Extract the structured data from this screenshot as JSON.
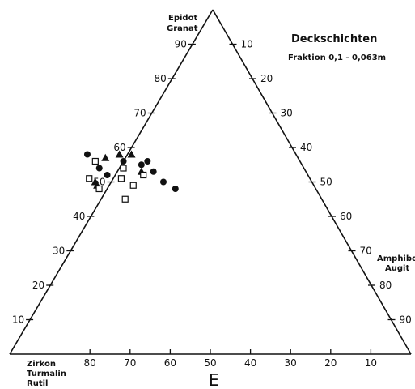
{
  "chart_data": {
    "type": "scatter",
    "plot_kind": "ternary",
    "title": "Deckschichten",
    "subtitle": "Fraktion 0,1 - 0,063m",
    "bottom_label": "E",
    "apices": {
      "top": [
        "Epidot",
        "Granat"
      ],
      "right": [
        "Amphibol",
        "Augit"
      ],
      "bottom_left": [
        "Zirkon",
        "Turmalin",
        "Rutil"
      ]
    },
    "axes": {
      "left_edge_ticks": [
        10,
        20,
        30,
        40,
        50,
        60,
        70,
        80,
        90
      ],
      "right_edge_ticks": [
        10,
        20,
        30,
        40,
        50,
        60,
        70,
        80,
        90
      ],
      "bottom_edge_ticks": [
        80,
        70,
        60,
        50,
        40,
        30,
        20,
        10
      ]
    },
    "series": [
      {
        "marker": "filled-circle",
        "points": [
          {
            "epidot_granat": 58,
            "bottom": 52
          },
          {
            "epidot_granat": 56,
            "bottom": 44
          },
          {
            "epidot_granat": 56,
            "bottom": 38
          },
          {
            "epidot_granat": 54,
            "bottom": 51
          },
          {
            "epidot_granat": 55,
            "bottom": 40
          },
          {
            "epidot_granat": 52,
            "bottom": 50
          },
          {
            "epidot_granat": 53,
            "bottom": 38
          },
          {
            "epidot_granat": 50,
            "bottom": 37
          },
          {
            "epidot_granat": 48,
            "bottom": 35
          }
        ]
      },
      {
        "marker": "filled-triangle",
        "points": [
          {
            "epidot_granat": 57,
            "bottom": 48
          },
          {
            "epidot_granat": 58,
            "bottom": 44
          },
          {
            "epidot_granat": 58,
            "bottom": 41
          },
          {
            "epidot_granat": 53,
            "bottom": 41
          },
          {
            "epidot_granat": 50,
            "bottom": 54
          },
          {
            "epidot_granat": 49,
            "bottom": 54
          }
        ]
      },
      {
        "marker": "open-square",
        "points": [
          {
            "epidot_granat": 56,
            "bottom": 51
          },
          {
            "epidot_granat": 54,
            "bottom": 45
          },
          {
            "epidot_granat": 52,
            "bottom": 41
          },
          {
            "epidot_granat": 51,
            "bottom": 47
          },
          {
            "epidot_granat": 51,
            "bottom": 55
          },
          {
            "epidot_granat": 48,
            "bottom": 54
          },
          {
            "epidot_granat": 49,
            "bottom": 45
          },
          {
            "epidot_granat": 45,
            "bottom": 49
          }
        ]
      }
    ]
  }
}
